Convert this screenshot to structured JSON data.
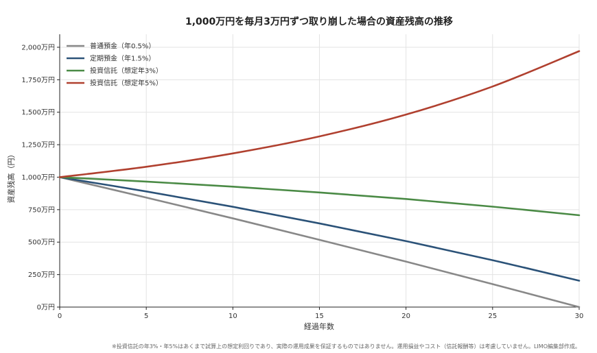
{
  "chart_data": {
    "type": "line",
    "title": "1,000万円を毎月3万円ずつ取り崩した場合の資産残高の推移",
    "xlabel": "経過年数",
    "ylabel": "資産残高（円）",
    "xlim": [
      0,
      30
    ],
    "ylim": [
      0,
      2100
    ],
    "x_ticks": [
      0,
      5,
      10,
      15,
      20,
      25,
      30
    ],
    "x_tick_labels": [
      "0",
      "5",
      "10",
      "15",
      "20",
      "25",
      "30"
    ],
    "y_ticks": [
      0,
      250,
      500,
      750,
      1000,
      1250,
      1500,
      1750,
      2000
    ],
    "y_tick_labels": [
      "0万円",
      "250万円",
      "500万円",
      "750万円",
      "1,000万円",
      "1,250万円",
      "1,500万円",
      "1,750万円",
      "2,000万円"
    ],
    "grid": true,
    "legend_position": "top-left",
    "x": [
      0,
      5,
      10,
      15,
      20,
      25,
      30
    ],
    "series": [
      {
        "name": "普通預金（年0.5%）",
        "color": "#888888",
        "values": [
          1000,
          843,
          683,
          518,
          350,
          177,
          0
        ]
      },
      {
        "name": "定期預金（年1.5%）",
        "color": "#2b5278",
        "values": [
          1000,
          890,
          772,
          644,
          508,
          361,
          203
        ]
      },
      {
        "name": "投資信託（想定年3%）",
        "color": "#4a8a45",
        "values": [
          1000,
          966,
          927,
          882,
          832,
          773,
          707
        ]
      },
      {
        "name": "投資信託（想定年5%）",
        "color": "#b0402f",
        "values": [
          1000,
          1080,
          1183,
          1314,
          1482,
          1698,
          1970
        ]
      }
    ]
  },
  "footnote": "※投資信託の年3%・年5%はあくまで試算上の想定利回りであり、実際の運用成果を保証するものではありません。運用損益やコスト（信託報酬等）は考慮していません。LIMO編集部作成。"
}
